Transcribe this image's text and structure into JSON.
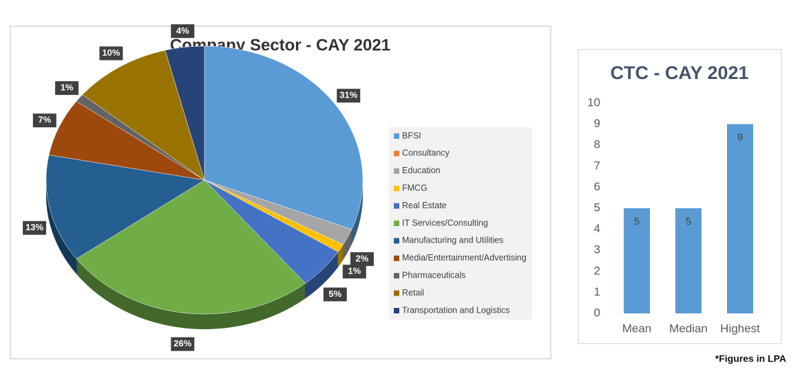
{
  "chart_data": [
    {
      "type": "pie",
      "title": "Company Sector - CAY 2021",
      "categories": [
        "BFSI",
        "Consultancy",
        "Education",
        "FMCG",
        "Real Estate",
        "IT Services/Consulting",
        "Manufacturing and Utilities",
        "Media/Entertainment/Advertising",
        "Pharmaceuticals",
        "Retail",
        "Transportation and Logistics"
      ],
      "values": [
        31,
        0,
        2,
        1,
        5,
        26,
        13,
        7,
        1,
        10,
        4
      ],
      "value_labels": [
        "31%",
        null,
        "2%",
        "1%",
        "5%",
        "26%",
        "13%",
        "7%",
        "1%",
        "10%",
        "4%"
      ],
      "colors": [
        "#5b9bd5",
        "#ed7d31",
        "#a5a5a5",
        "#ffc000",
        "#4472c4",
        "#70ad47",
        "#255e91",
        "#9e480e",
        "#636363",
        "#997300",
        "#264478"
      ],
      "legend": "right"
    },
    {
      "type": "bar",
      "title": "CTC - CAY 2021",
      "categories": [
        "Mean",
        "Median",
        "Highest"
      ],
      "values": [
        5,
        5,
        9
      ],
      "color": "#5b9bd5",
      "ylim": [
        0,
        10
      ],
      "yticks": [
        0,
        1,
        2,
        3,
        4,
        5,
        6,
        7,
        8,
        9,
        10
      ],
      "grid": false
    }
  ],
  "footnote": "*Figures in LPA"
}
